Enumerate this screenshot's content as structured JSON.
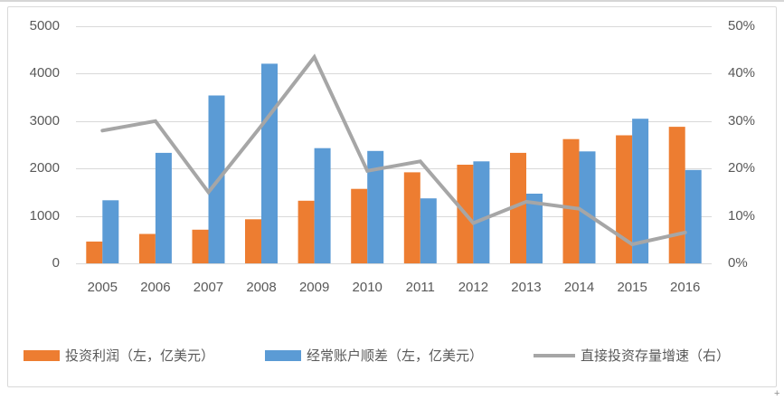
{
  "chart_data": {
    "type": "combo",
    "categories": [
      "2005",
      "2006",
      "2007",
      "2008",
      "2009",
      "2010",
      "2011",
      "2012",
      "2013",
      "2014",
      "2015",
      "2016"
    ],
    "series": [
      {
        "name": "投资利润（左，亿美元）",
        "type": "bar",
        "axis": "left",
        "color": "#ED7D31",
        "values": [
          460,
          620,
          710,
          930,
          1320,
          1570,
          1920,
          2080,
          2330,
          2620,
          2700,
          2880
        ]
      },
      {
        "name": "经常账户顺差（左，亿美元）",
        "type": "bar",
        "axis": "left",
        "color": "#5B9BD5",
        "values": [
          1330,
          2330,
          3540,
          4210,
          2430,
          2370,
          1370,
          2150,
          1470,
          2360,
          3050,
          1970
        ]
      },
      {
        "name": "直接投资存量增速（右）",
        "type": "line",
        "axis": "right",
        "color": "#A6A6A6",
        "values": [
          28,
          30,
          15,
          29,
          43.5,
          19.5,
          21.5,
          8.5,
          13,
          11.5,
          4,
          6.5
        ]
      }
    ],
    "left_axis": {
      "min": 0,
      "max": 5000,
      "step": 1000,
      "tick_labels": [
        "5000",
        "4000",
        "3000",
        "2000",
        "1000",
        "0"
      ]
    },
    "right_axis": {
      "min": 0,
      "max": 50,
      "step": 10,
      "tick_labels": [
        "50%",
        "40%",
        "30%",
        "20%",
        "10%",
        "0%"
      ]
    },
    "grid": "horizontal",
    "legend_position": "bottom",
    "title": "",
    "xlabel": "",
    "ylabel": ""
  },
  "legend": {
    "items": [
      {
        "label": "投资利润（左，亿美元）",
        "marker": "bar",
        "color": "#ED7D31"
      },
      {
        "label": "经常账户顺差（左，亿美元）",
        "marker": "bar",
        "color": "#5B9BD5"
      },
      {
        "label": "直接投资存量增速（右）",
        "marker": "line",
        "color": "#A6A6A6"
      }
    ]
  },
  "colors": {
    "bar_orange": "#ED7D31",
    "bar_blue": "#5B9BD5",
    "line_gray": "#A6A6A6",
    "gridline": "#D9D9D9",
    "axis_text": "#595959",
    "frame_border": "#D9D9D9"
  },
  "misc": {
    "resize_handle": "+"
  }
}
